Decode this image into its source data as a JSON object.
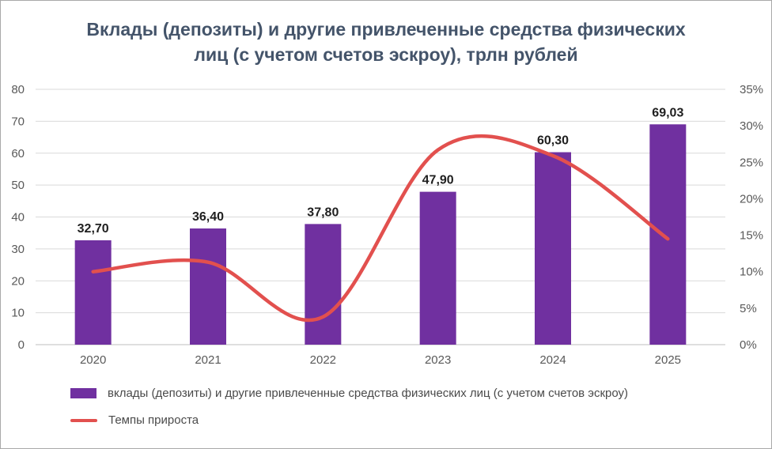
{
  "chart_data": {
    "type": "bar",
    "combo": "bar+line",
    "title": "Вклады (депозиты) и другие привлеченные средства физических лиц (с учетом счетов эскроу), трлн рублей",
    "categories": [
      "2020",
      "2021",
      "2022",
      "2023",
      "2024",
      "2025"
    ],
    "series": [
      {
        "name": "вклады (депозиты) и другие привлеченные средства физических лиц (с учетом счетов эскроу)",
        "type": "bar",
        "axis": "left",
        "values": [
          32.7,
          36.4,
          37.8,
          47.9,
          60.3,
          69.03
        ],
        "data_labels": [
          "32,70",
          "36,40",
          "37,80",
          "47,90",
          "60,30",
          "69,03"
        ]
      },
      {
        "name": "Темпы прироста",
        "type": "line",
        "axis": "right",
        "values_percent": [
          10.0,
          11.3,
          3.8,
          26.7,
          25.9,
          14.5
        ]
      }
    ],
    "left_axis": {
      "min": 0,
      "max": 80,
      "step": 10,
      "ticks": [
        "0",
        "10",
        "20",
        "30",
        "40",
        "50",
        "60",
        "70",
        "80"
      ]
    },
    "right_axis": {
      "min": 0,
      "max": 35,
      "step": 5,
      "ticks": [
        "0%",
        "5%",
        "10%",
        "15%",
        "20%",
        "25%",
        "30%",
        "35%"
      ]
    },
    "grid": "horizontal",
    "legend_position": "bottom-left",
    "legend": [
      "вклады (депозиты) и другие привлеченные средства физических лиц (с учетом счетов эскроу)",
      "Темпы прироста"
    ]
  },
  "colors": {
    "bar": "#7030A0",
    "line": "#E2504E",
    "title": "#44546A",
    "grid": "#D9D9D9",
    "axis_line": "#BFBFBF",
    "axis_text": "#595959",
    "value_label": "#1F1F1F",
    "legend_text": "#4A4A4A",
    "border": "#A9A9A9",
    "background": "#FFFFFF"
  }
}
